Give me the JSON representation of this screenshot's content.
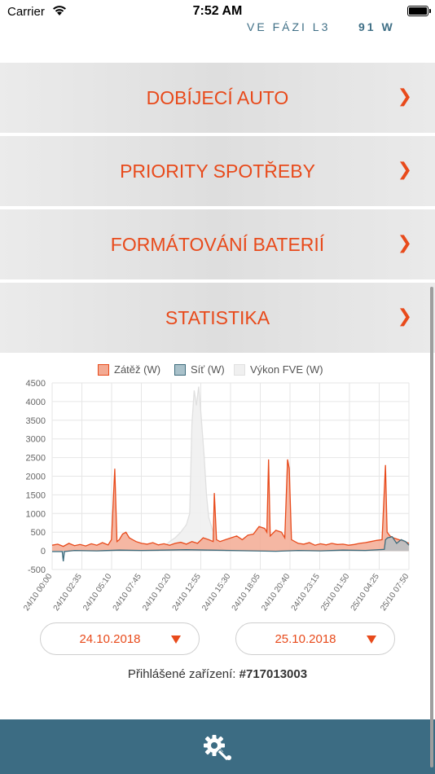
{
  "status_bar": {
    "carrier": "Carrier",
    "time": "7:52 AM"
  },
  "phase": {
    "label": "VE FÁZI L3",
    "value": "91 W"
  },
  "menu": [
    {
      "label": "DOBÍJECÍ AUTO",
      "chevron": "❯"
    },
    {
      "label": "PRIORITY SPOTŘEBY",
      "chevron": "❯"
    },
    {
      "label": "FORMÁTOVÁNÍ BATERIÍ",
      "chevron": "❯"
    },
    {
      "label": "STATISTIKA",
      "chevron": "❯"
    }
  ],
  "chart_data": {
    "type": "area",
    "legend": [
      "Zátěž (W)",
      "Síť (W)",
      "Výkon FVE (W)"
    ],
    "colors": {
      "zatez": "#e84a1b",
      "zatez_fill": "#f3aa93",
      "sit": "#3d6b7c",
      "sit_fill": "#a9c1ca",
      "fve": "#e0e0e0",
      "fve_fill": "#f0f0f0"
    },
    "ylim": [
      -500,
      4500
    ],
    "yticks": [
      -500,
      0,
      500,
      1000,
      1500,
      2000,
      2500,
      3000,
      3500,
      4000,
      4500
    ],
    "xticks": [
      "24/10 00:00",
      "24/10 02:35",
      "24/10 05:10",
      "24/10 07:45",
      "24/10 10:20",
      "24/10 12:55",
      "24/10 15:30",
      "24/10 18:05",
      "24/10 20:40",
      "24/10 23:15",
      "25/10 01:50",
      "25/10 04:25",
      "25/10 07:50"
    ],
    "x_hours": [
      0,
      31.9
    ],
    "series": [
      {
        "name": "Zátěž (W)",
        "points": [
          [
            0,
            150
          ],
          [
            0.5,
            180
          ],
          [
            1,
            120
          ],
          [
            1.5,
            200
          ],
          [
            2,
            140
          ],
          [
            2.5,
            170
          ],
          [
            3,
            130
          ],
          [
            3.5,
            190
          ],
          [
            4,
            150
          ],
          [
            4.5,
            220
          ],
          [
            5,
            160
          ],
          [
            5.3,
            300
          ],
          [
            5.6,
            2200
          ],
          [
            5.8,
            250
          ],
          [
            6,
            300
          ],
          [
            6.3,
            450
          ],
          [
            6.6,
            500
          ],
          [
            6.9,
            350
          ],
          [
            7.2,
            300
          ],
          [
            7.5,
            250
          ],
          [
            8,
            200
          ],
          [
            8.5,
            180
          ],
          [
            9,
            220
          ],
          [
            9.5,
            160
          ],
          [
            10,
            190
          ],
          [
            10.5,
            150
          ],
          [
            11,
            200
          ],
          [
            11.5,
            230
          ],
          [
            12,
            180
          ],
          [
            12.5,
            250
          ],
          [
            13,
            200
          ],
          [
            13.5,
            350
          ],
          [
            14,
            300
          ],
          [
            14.4,
            250
          ],
          [
            14.5,
            1550
          ],
          [
            14.7,
            300
          ],
          [
            15,
            250
          ],
          [
            15.5,
            300
          ],
          [
            16,
            350
          ],
          [
            16.5,
            400
          ],
          [
            17,
            300
          ],
          [
            17.5,
            420
          ],
          [
            18,
            450
          ],
          [
            18.5,
            650
          ],
          [
            19,
            600
          ],
          [
            19.2,
            500
          ],
          [
            19.35,
            2450
          ],
          [
            19.5,
            400
          ],
          [
            20,
            550
          ],
          [
            20.5,
            500
          ],
          [
            20.8,
            350
          ],
          [
            21.05,
            2450
          ],
          [
            21.2,
            2200
          ],
          [
            21.4,
            300
          ],
          [
            22,
            200
          ],
          [
            22.5,
            180
          ],
          [
            23,
            220
          ],
          [
            23.5,
            150
          ],
          [
            24,
            190
          ],
          [
            24.5,
            160
          ],
          [
            25,
            200
          ],
          [
            25.5,
            170
          ],
          [
            26,
            180
          ],
          [
            26.5,
            150
          ],
          [
            27,
            170
          ],
          [
            27.5,
            200
          ],
          [
            28,
            220
          ],
          [
            28.5,
            250
          ],
          [
            29,
            280
          ],
          [
            29.5,
            300
          ],
          [
            29.8,
            2300
          ],
          [
            29.95,
            500
          ],
          [
            30.2,
            400
          ],
          [
            30.5,
            350
          ],
          [
            31,
            300
          ],
          [
            31.5,
            250
          ],
          [
            31.9,
            200
          ]
        ]
      },
      {
        "name": "Síť (W)",
        "points": [
          [
            0,
            -20
          ],
          [
            0.9,
            -20
          ],
          [
            1,
            -280
          ],
          [
            1.1,
            -20
          ],
          [
            2,
            10
          ],
          [
            4,
            0
          ],
          [
            6,
            20
          ],
          [
            8,
            10
          ],
          [
            10,
            20
          ],
          [
            12,
            30
          ],
          [
            14,
            20
          ],
          [
            16,
            10
          ],
          [
            18,
            0
          ],
          [
            20,
            -10
          ],
          [
            22,
            10
          ],
          [
            24,
            0
          ],
          [
            26,
            20
          ],
          [
            28,
            10
          ],
          [
            29.7,
            40
          ],
          [
            29.8,
            300
          ],
          [
            30,
            350
          ],
          [
            30.4,
            380
          ],
          [
            30.8,
            200
          ],
          [
            31.2,
            300
          ],
          [
            31.6,
            250
          ],
          [
            31.9,
            150
          ]
        ]
      },
      {
        "name": "Výkon FVE (W)",
        "points": [
          [
            0,
            0
          ],
          [
            9.5,
            0
          ],
          [
            10,
            100
          ],
          [
            10.5,
            250
          ],
          [
            11,
            350
          ],
          [
            11.5,
            500
          ],
          [
            12,
            700
          ],
          [
            12.3,
            1000
          ],
          [
            12.5,
            3400
          ],
          [
            12.7,
            4300
          ],
          [
            12.9,
            3900
          ],
          [
            13.1,
            4400
          ],
          [
            13.3,
            3700
          ],
          [
            13.6,
            2500
          ],
          [
            13.8,
            1500
          ],
          [
            14,
            900
          ],
          [
            14.3,
            600
          ],
          [
            14.6,
            300
          ],
          [
            15,
            100
          ],
          [
            15.5,
            0
          ],
          [
            31.9,
            0
          ]
        ]
      }
    ]
  },
  "dates": {
    "from": "24.10.2018",
    "to": "25.10.2018"
  },
  "device": {
    "label": "Přihlášené zařízení:",
    "id": "#717013003"
  },
  "footer": {
    "icon": "settings-gear-icon"
  }
}
